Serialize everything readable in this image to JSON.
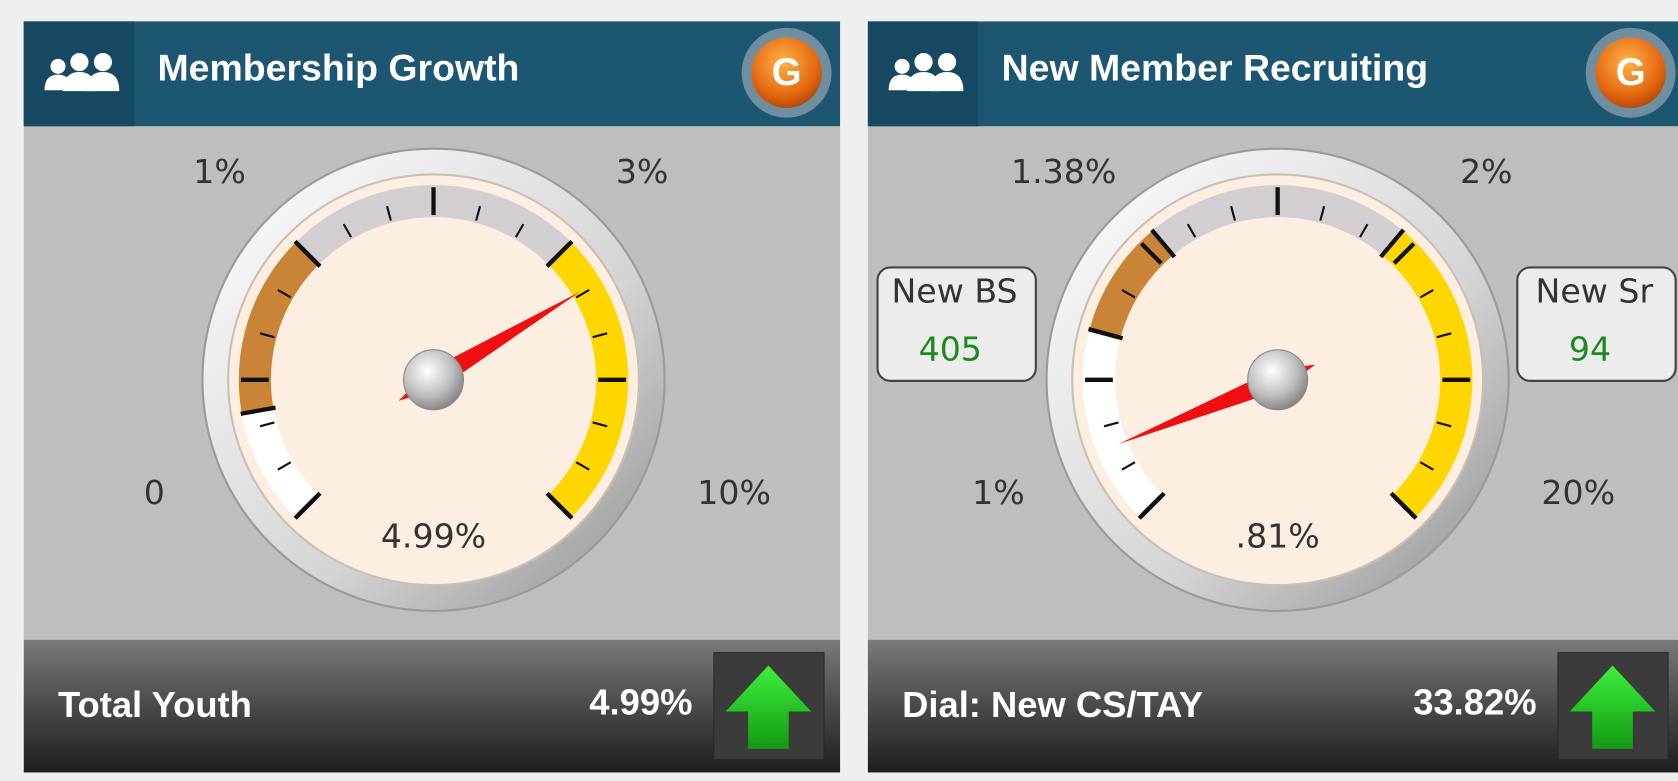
{
  "widgets": [
    {
      "title": "Membership Growth",
      "badge": "G",
      "gauge": {
        "top_left": "1%",
        "top_right": "3%",
        "bottom_left": "0",
        "bottom_right": "10%",
        "reading": "4.99%"
      },
      "footer": {
        "label": "Total Youth",
        "value": "4.99%"
      }
    },
    {
      "title": "New Member Recruiting",
      "badge": "G",
      "gauge": {
        "top_left": "1.38%",
        "top_right": "2%",
        "bottom_left": "1%",
        "bottom_right": "20%",
        "reading": ".81%"
      },
      "side_boxes": [
        {
          "label": "New BS",
          "value": 405
        },
        {
          "label": "New Sr",
          "value": 94
        }
      ],
      "footer": {
        "label": "Dial: New CS/TAY",
        "value": "33.82%"
      }
    }
  ]
}
